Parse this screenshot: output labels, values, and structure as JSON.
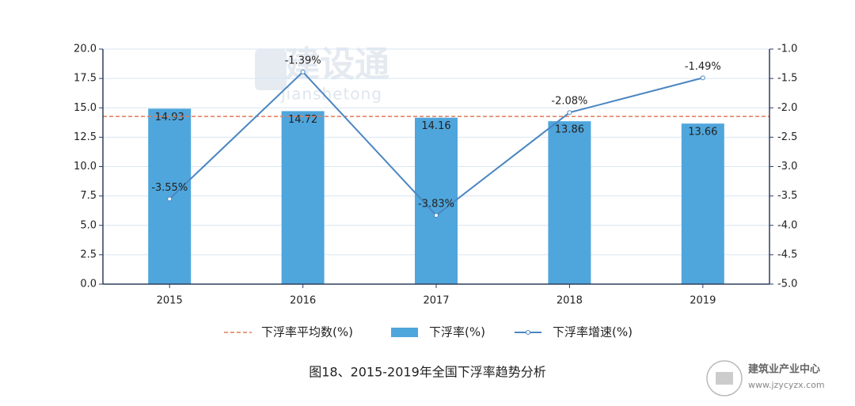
{
  "chart_data": {
    "type": "bar",
    "title": "图18、2015-2019年全国下浮率趋势分析",
    "watermarks": [
      "建设通",
      "jianshetong",
      "建筑业产业中心",
      "www.jzycyzx.com"
    ],
    "categories": [
      "2015",
      "2016",
      "2017",
      "2018",
      "2019"
    ],
    "series": [
      {
        "name": "下浮率(%)",
        "type": "bar",
        "color": "#4fa6dc",
        "values": [
          14.93,
          14.72,
          14.16,
          13.86,
          13.66
        ]
      },
      {
        "name": "下浮率增速(%)",
        "type": "line",
        "axis": "y2",
        "color": "#4a86c0",
        "values": [
          -3.55,
          -1.39,
          -3.83,
          -2.08,
          -1.49
        ],
        "value_labels": [
          "-3.55%",
          "-1.39%",
          "-3.83%",
          "-2.08%",
          "-1.49%"
        ]
      }
    ],
    "reference_line": {
      "name": "下浮率平均数(%)",
      "value": 14.27,
      "color": "#e07b5a",
      "dashed": true
    },
    "ylim": [
      0,
      20
    ],
    "yticks": [
      {
        "value": 0,
        "label": "0.0"
      },
      {
        "value": 2.5,
        "label": "2.5"
      },
      {
        "value": 5,
        "label": "5.0"
      },
      {
        "value": 7.5,
        "label": "7.5"
      },
      {
        "value": 10,
        "label": "10.0"
      },
      {
        "value": 12.5,
        "label": "12.5"
      },
      {
        "value": 15,
        "label": "15.0"
      },
      {
        "value": 17.5,
        "label": "17.5"
      },
      {
        "value": 20,
        "label": "20.0"
      }
    ],
    "y2lim": [
      -5,
      -1
    ],
    "y2ticks": [
      {
        "value": -5,
        "label": "-5.0"
      },
      {
        "value": -4.5,
        "label": "-4.5"
      },
      {
        "value": -4,
        "label": "-4.0"
      },
      {
        "value": -3.5,
        "label": "-3.5"
      },
      {
        "value": -3,
        "label": "-3.0"
      },
      {
        "value": -2.5,
        "label": "-2.5"
      },
      {
        "value": -2,
        "label": "-2.0"
      },
      {
        "value": -1.5,
        "label": "-1.5"
      },
      {
        "value": -1,
        "label": "-1.0"
      }
    ],
    "grid": true,
    "legend": "bottom"
  }
}
